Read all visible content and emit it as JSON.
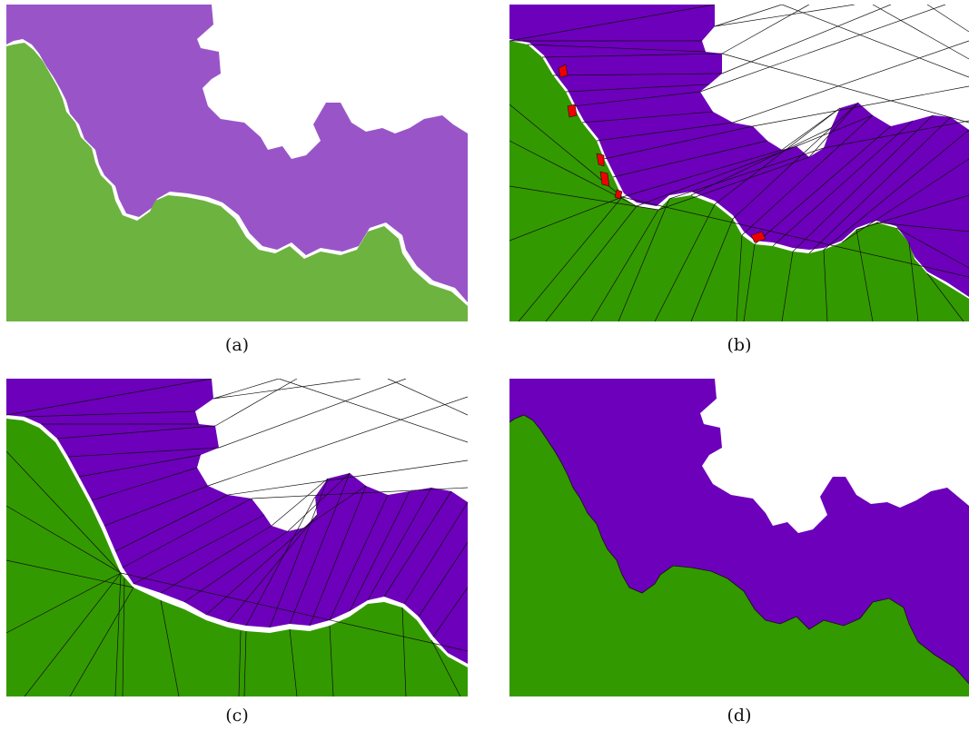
{
  "panels": [
    {
      "id": "a",
      "caption": "(a)",
      "green_color": "#6db33f",
      "purple_color": "#9955c8",
      "triangulated": false
    },
    {
      "id": "b",
      "caption": "(b)",
      "green_color": "#339900",
      "purple_color": "#6d00bb",
      "highlight_color": "#ee0000",
      "triangulated": true
    },
    {
      "id": "c",
      "caption": "(c)",
      "green_color": "#339900",
      "purple_color": "#6d00bb",
      "triangulated": true
    },
    {
      "id": "d",
      "caption": "(d)",
      "green_color": "#339900",
      "purple_color": "#6d00bb",
      "triangulated": false
    }
  ]
}
